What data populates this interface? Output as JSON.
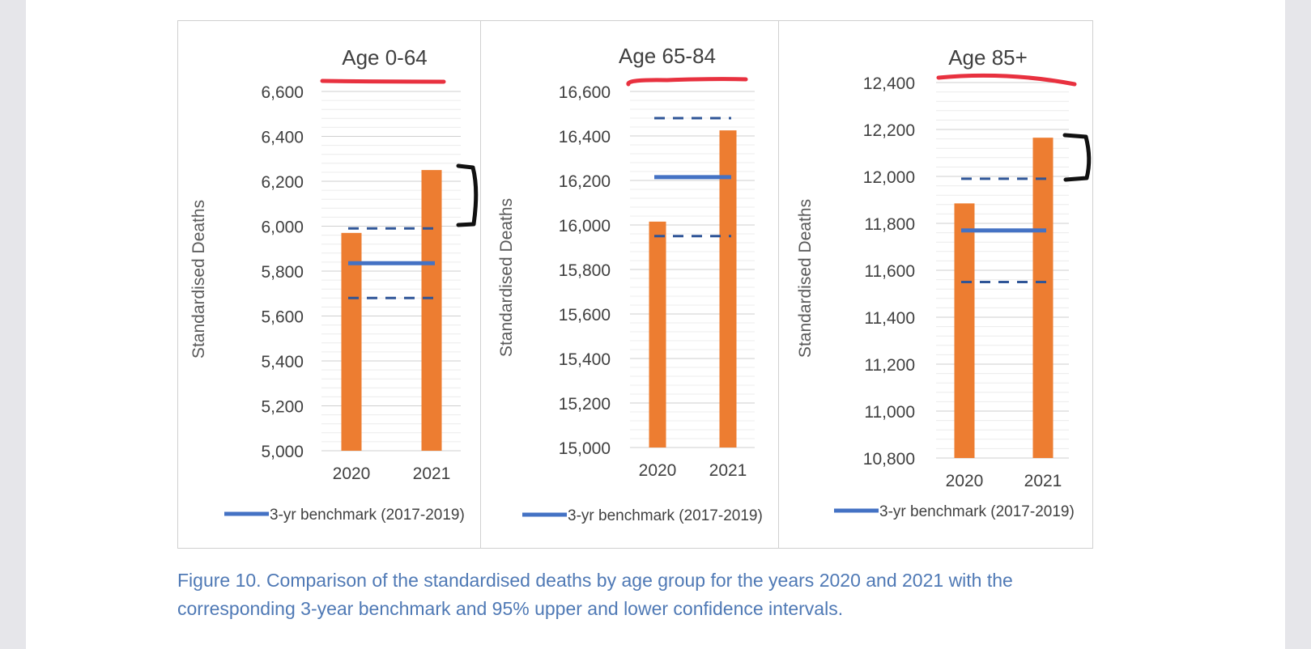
{
  "chart_data": [
    {
      "type": "bar",
      "title": "Age 0-64",
      "ylabel": "Standardised Deaths",
      "categories": [
        "2020",
        "2021"
      ],
      "series": [
        {
          "values": [
            5970,
            6250
          ]
        }
      ],
      "benchmark": {
        "name": "3-yr benchmark (2017-2019)",
        "value": 5835,
        "upper_ci": 5990,
        "lower_ci": 5680
      },
      "yticks": [
        "5,000",
        "5,200",
        "5,400",
        "5,600",
        "5,800",
        "6,000",
        "6,200",
        "6,400",
        "6,600"
      ],
      "ylim": [
        5000,
        6600
      ],
      "grid": true,
      "legend": "bottom"
    },
    {
      "type": "bar",
      "title": "Age 65-84",
      "ylabel": "Standardised Deaths",
      "categories": [
        "2020",
        "2021"
      ],
      "series": [
        {
          "values": [
            16015,
            16425
          ]
        }
      ],
      "benchmark": {
        "name": "3-yr benchmark (2017-2019)",
        "value": 16215,
        "upper_ci": 16480,
        "lower_ci": 15950
      },
      "yticks": [
        "15,000",
        "15,200",
        "15,400",
        "15,600",
        "15,800",
        "16,000",
        "16,200",
        "16,400",
        "16,600"
      ],
      "ylim": [
        15000,
        16600
      ],
      "grid": true,
      "legend": "bottom"
    },
    {
      "type": "bar",
      "title": "Age 85+",
      "ylabel": "Standardised Deaths",
      "categories": [
        "2020",
        "2021"
      ],
      "series": [
        {
          "values": [
            11885,
            12165
          ]
        }
      ],
      "benchmark": {
        "name": "3-yr benchmark (2017-2019)",
        "value": 11770,
        "upper_ci": 11990,
        "lower_ci": 11550
      },
      "yticks": [
        "10,800",
        "11,000",
        "11,200",
        "11,400",
        "11,600",
        "11,800",
        "12,000",
        "12,200",
        "12,400"
      ],
      "ylim": [
        10800,
        12400
      ],
      "grid": true,
      "legend": "bottom"
    }
  ],
  "caption": {
    "line1": "Figure 10. Comparison of the standardised deaths by age group for the years 2020 and 2021 with the",
    "line2": "corresponding 3-year benchmark and 95% upper and lower confidence intervals."
  },
  "colors": {
    "bar": "#ed7d31",
    "benchmark": "#4472c4",
    "ci": "#2f5597",
    "annotation_red": "#e8313f",
    "annotation_black": "#111111",
    "caption": "#4f79b5"
  }
}
